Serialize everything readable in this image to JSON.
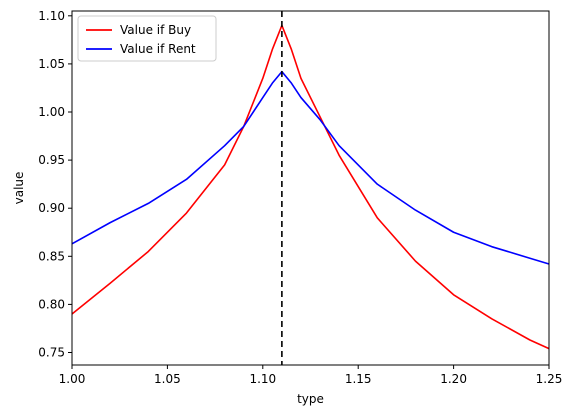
{
  "chart_data": {
    "type": "line",
    "title": "",
    "xlabel": "type",
    "ylabel": "value",
    "xlim": [
      1.0,
      1.25
    ],
    "ylim": [
      0.737,
      1.105
    ],
    "xticks": [
      1.0,
      1.05,
      1.1,
      1.15,
      1.2,
      1.25
    ],
    "xtick_labels": [
      "1.00",
      "1.05",
      "1.10",
      "1.15",
      "1.20",
      "1.25"
    ],
    "yticks": [
      0.75,
      0.8,
      0.85,
      0.9,
      0.95,
      1.0,
      1.05,
      1.1
    ],
    "ytick_labels": [
      "0.75",
      "0.80",
      "0.85",
      "0.90",
      "0.95",
      "1.00",
      "1.05",
      "1.10"
    ],
    "grid": false,
    "legend_position": "top-left",
    "vline": {
      "x": 1.11,
      "style": "dashed",
      "color": "#000000"
    },
    "series": [
      {
        "name": "Value if Buy",
        "color": "#ff0000",
        "x": [
          1.0,
          1.02,
          1.04,
          1.06,
          1.08,
          1.09,
          1.1,
          1.105,
          1.11,
          1.115,
          1.12,
          1.13,
          1.14,
          1.16,
          1.18,
          1.2,
          1.22,
          1.24,
          1.25
        ],
        "y": [
          0.79,
          0.822,
          0.855,
          0.895,
          0.945,
          0.985,
          1.035,
          1.065,
          1.09,
          1.065,
          1.035,
          0.995,
          0.955,
          0.89,
          0.845,
          0.81,
          0.785,
          0.763,
          0.754
        ]
      },
      {
        "name": "Value if Rent",
        "color": "#0000ff",
        "x": [
          1.0,
          1.02,
          1.04,
          1.06,
          1.08,
          1.09,
          1.1,
          1.105,
          1.11,
          1.115,
          1.12,
          1.13,
          1.14,
          1.16,
          1.18,
          1.2,
          1.22,
          1.24,
          1.25
        ],
        "y": [
          0.863,
          0.885,
          0.905,
          0.93,
          0.965,
          0.985,
          1.015,
          1.03,
          1.042,
          1.03,
          1.015,
          0.992,
          0.965,
          0.925,
          0.898,
          0.875,
          0.86,
          0.848,
          0.842
        ]
      }
    ]
  }
}
